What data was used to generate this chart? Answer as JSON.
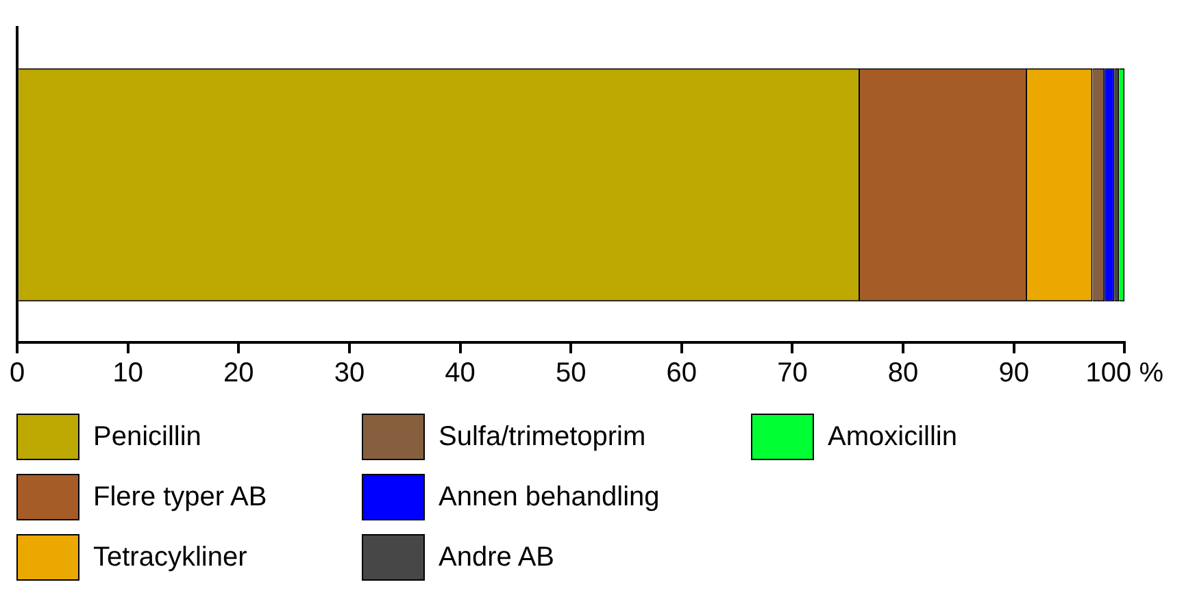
{
  "chart_data": {
    "type": "bar",
    "orientation": "horizontal",
    "stacked": true,
    "categories": [
      null
    ],
    "series": [
      {
        "name": "Penicillin",
        "color": "#bca800",
        "values": [
          76.1
        ]
      },
      {
        "name": "Flere typer AB",
        "color": "#a65c26",
        "values": [
          15.1
        ]
      },
      {
        "name": "Tetracykliner",
        "color": "#eba800",
        "values": [
          5.9
        ]
      },
      {
        "name": "Sulfa/trimetoprim",
        "color": "#86603e",
        "values": [
          1.1
        ]
      },
      {
        "name": "Annen behandling",
        "color": "#0000ff",
        "values": [
          0.9
        ]
      },
      {
        "name": "Andre AB",
        "color": "#474747",
        "values": [
          0.4
        ]
      },
      {
        "name": "Amoxicillin",
        "color": "#00ff33",
        "values": [
          0.5
        ]
      }
    ],
    "xlim": [
      0,
      100
    ],
    "xticks": [
      0,
      10,
      20,
      30,
      40,
      50,
      60,
      70,
      80,
      90,
      {
        "value": 100,
        "label": "100 %"
      }
    ],
    "grid": false,
    "legend": "bottom",
    "tick_labels": "x"
  }
}
